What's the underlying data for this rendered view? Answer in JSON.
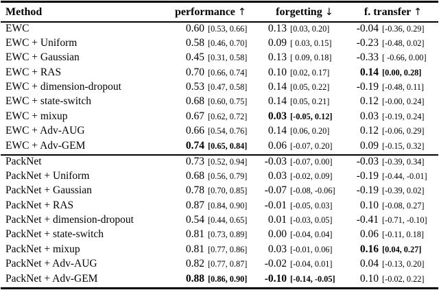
{
  "page": {
    "background": "#ffffff",
    "text_color": "#000000"
  },
  "table": {
    "header": {
      "method": "Method",
      "performance": "performance",
      "performance_arrow": "↑",
      "forgetting": "forgetting",
      "forgetting_arrow": "↓",
      "transfer": "f. transfer",
      "transfer_arrow": "↑"
    },
    "sections": [
      {
        "rows": [
          {
            "method": "EWC",
            "performance": {
              "value": "0.60",
              "ci": "[0.53, 0.66]",
              "bold": false
            },
            "forgetting": {
              "value": "0.13",
              "ci": "[0.03, 0.20]",
              "bold": false
            },
            "transfer": {
              "value": "-0.04",
              "ci": "[-0.36, 0.29]",
              "bold": false
            }
          },
          {
            "method": "EWC + Uniform",
            "performance": {
              "value": "0.58",
              "ci": "[0.46, 0.70]",
              "bold": false
            },
            "forgetting": {
              "value": "0.09",
              "ci": "[ 0.03, 0.15]",
              "bold": false
            },
            "transfer": {
              "value": "-0.23",
              "ci": "[-0.48, 0.02]",
              "bold": false
            }
          },
          {
            "method": "EWC + Gaussian",
            "performance": {
              "value": "0.45",
              "ci": "[0.31, 0.58]",
              "bold": false
            },
            "forgetting": {
              "value": "0.13",
              "ci": "[ 0.09, 0.18]",
              "bold": false
            },
            "transfer": {
              "value": "-0.33",
              "ci": "[ -0.66, 0.00]",
              "bold": false
            }
          },
          {
            "method": "EWC + RAS",
            "performance": {
              "value": "0.70",
              "ci": "[0.66, 0.74]",
              "bold": false
            },
            "forgetting": {
              "value": "0.10",
              "ci": "[0.02, 0.17]",
              "bold": false
            },
            "transfer": {
              "value": "0.14",
              "ci": "[0.00, 0.28]",
              "bold": true
            }
          },
          {
            "method": "EWC + dimension-dropout",
            "performance": {
              "value": "0.53",
              "ci": "[0.47, 0.58]",
              "bold": false
            },
            "forgetting": {
              "value": "0.14",
              "ci": "[0.05, 0.22]",
              "bold": false
            },
            "transfer": {
              "value": "-0.19",
              "ci": "[-0.48, 0.11]",
              "bold": false
            }
          },
          {
            "method": "EWC + state-switch",
            "performance": {
              "value": "0.68",
              "ci": "[0.60, 0.75]",
              "bold": false
            },
            "forgetting": {
              "value": "0.14",
              "ci": "[0.05, 0.21]",
              "bold": false
            },
            "transfer": {
              "value": "0.12",
              "ci": "[-0.00, 0.24]",
              "bold": false
            }
          },
          {
            "method": "EWC + mixup",
            "performance": {
              "value": "0.67",
              "ci": "[0.62, 0.72]",
              "bold": false
            },
            "forgetting": {
              "value": "0.03",
              "ci": "[-0.05, 0.12]",
              "bold": true
            },
            "transfer": {
              "value": "0.03",
              "ci": "[-0.19, 0.24]",
              "bold": false
            }
          },
          {
            "method": "EWC + Adv-AUG",
            "performance": {
              "value": "0.66",
              "ci": "[0.54, 0.76]",
              "bold": false
            },
            "forgetting": {
              "value": "0.14",
              "ci": "[0.06, 0.20]",
              "bold": false
            },
            "transfer": {
              "value": "0.12",
              "ci": "[-0.06, 0.29]",
              "bold": false
            }
          },
          {
            "method": "EWC + Adv-GEM",
            "performance": {
              "value": "0.74",
              "ci": "[0.65, 0.84]",
              "bold": true
            },
            "forgetting": {
              "value": "0.06",
              "ci": "[-0.07, 0.20]",
              "bold": false
            },
            "transfer": {
              "value": "0.09",
              "ci": "[-0.15, 0.32]",
              "bold": false
            }
          }
        ]
      },
      {
        "rows": [
          {
            "method": "PackNet",
            "performance": {
              "value": "0.73",
              "ci": "[0.52, 0.94]",
              "bold": false
            },
            "forgetting": {
              "value": "-0.03",
              "ci": "[-0.07, 0.00]",
              "bold": false
            },
            "transfer": {
              "value": "-0.03",
              "ci": "[-0.39, 0.34]",
              "bold": false
            }
          },
          {
            "method": "PackNet + Uniform",
            "performance": {
              "value": "0.68",
              "ci": "[0.56, 0.79]",
              "bold": false
            },
            "forgetting": {
              "value": "0.03",
              "ci": "[-0.02, 0.09]",
              "bold": false
            },
            "transfer": {
              "value": "-0.19",
              "ci": "[-0.44, -0.01]",
              "bold": false
            }
          },
          {
            "method": "PackNet + Gaussian",
            "performance": {
              "value": "0.78",
              "ci": "[0.70, 0.85]",
              "bold": false
            },
            "forgetting": {
              "value": "-0.07",
              "ci": "[-0.08, -0.06]",
              "bold": false
            },
            "transfer": {
              "value": "-0.19",
              "ci": "[-0.39, 0.02]",
              "bold": false
            }
          },
          {
            "method": "PackNet + RAS",
            "performance": {
              "value": "0.87",
              "ci": "[0.84, 0.90]",
              "bold": false
            },
            "forgetting": {
              "value": "-0.01",
              "ci": "[-0.05, 0.03]",
              "bold": false
            },
            "transfer": {
              "value": "0.10",
              "ci": "[-0.08, 0.27]",
              "bold": false
            }
          },
          {
            "method": "PackNet + dimension-dropout",
            "performance": {
              "value": "0.54",
              "ci": "[0.44, 0.65]",
              "bold": false
            },
            "forgetting": {
              "value": "0.01",
              "ci": "[-0.03, 0.05]",
              "bold": false
            },
            "transfer": {
              "value": "-0.41",
              "ci": "[-0.71, -0.10]",
              "bold": false
            }
          },
          {
            "method": "PackNet + state-switch",
            "performance": {
              "value": "0.81",
              "ci": "[0.73, 0.89]",
              "bold": false
            },
            "forgetting": {
              "value": "0.00",
              "ci": "[-0.04, 0.04]",
              "bold": false
            },
            "transfer": {
              "value": "0.06",
              "ci": "[-0.11, 0.18]",
              "bold": false
            }
          },
          {
            "method": "PackNet + mixup",
            "performance": {
              "value": "0.81",
              "ci": "[0.77, 0.86]",
              "bold": false
            },
            "forgetting": {
              "value": "0.03",
              "ci": "[-0.01, 0.06]",
              "bold": false
            },
            "transfer": {
              "value": "0.16",
              "ci": "[0.04, 0.27]",
              "bold": true
            }
          },
          {
            "method": "PackNet + Adv-AUG",
            "performance": {
              "value": "0.82",
              "ci": "[0.77, 0.87]",
              "bold": false
            },
            "forgetting": {
              "value": "-0.02",
              "ci": "[-0.04, 0.01]",
              "bold": false
            },
            "transfer": {
              "value": "0.04",
              "ci": "[-0.13, 0.20]",
              "bold": false
            }
          },
          {
            "method": "PackNet + Adv-GEM",
            "performance": {
              "value": "0.88",
              "ci": "[0.86, 0.90]",
              "bold": true
            },
            "forgetting": {
              "value": "-0.10",
              "ci": "[-0.14, -0.05]",
              "bold": true
            },
            "transfer": {
              "value": "0.10",
              "ci": "[-0.02, 0.22]",
              "bold": false
            }
          }
        ]
      }
    ]
  }
}
